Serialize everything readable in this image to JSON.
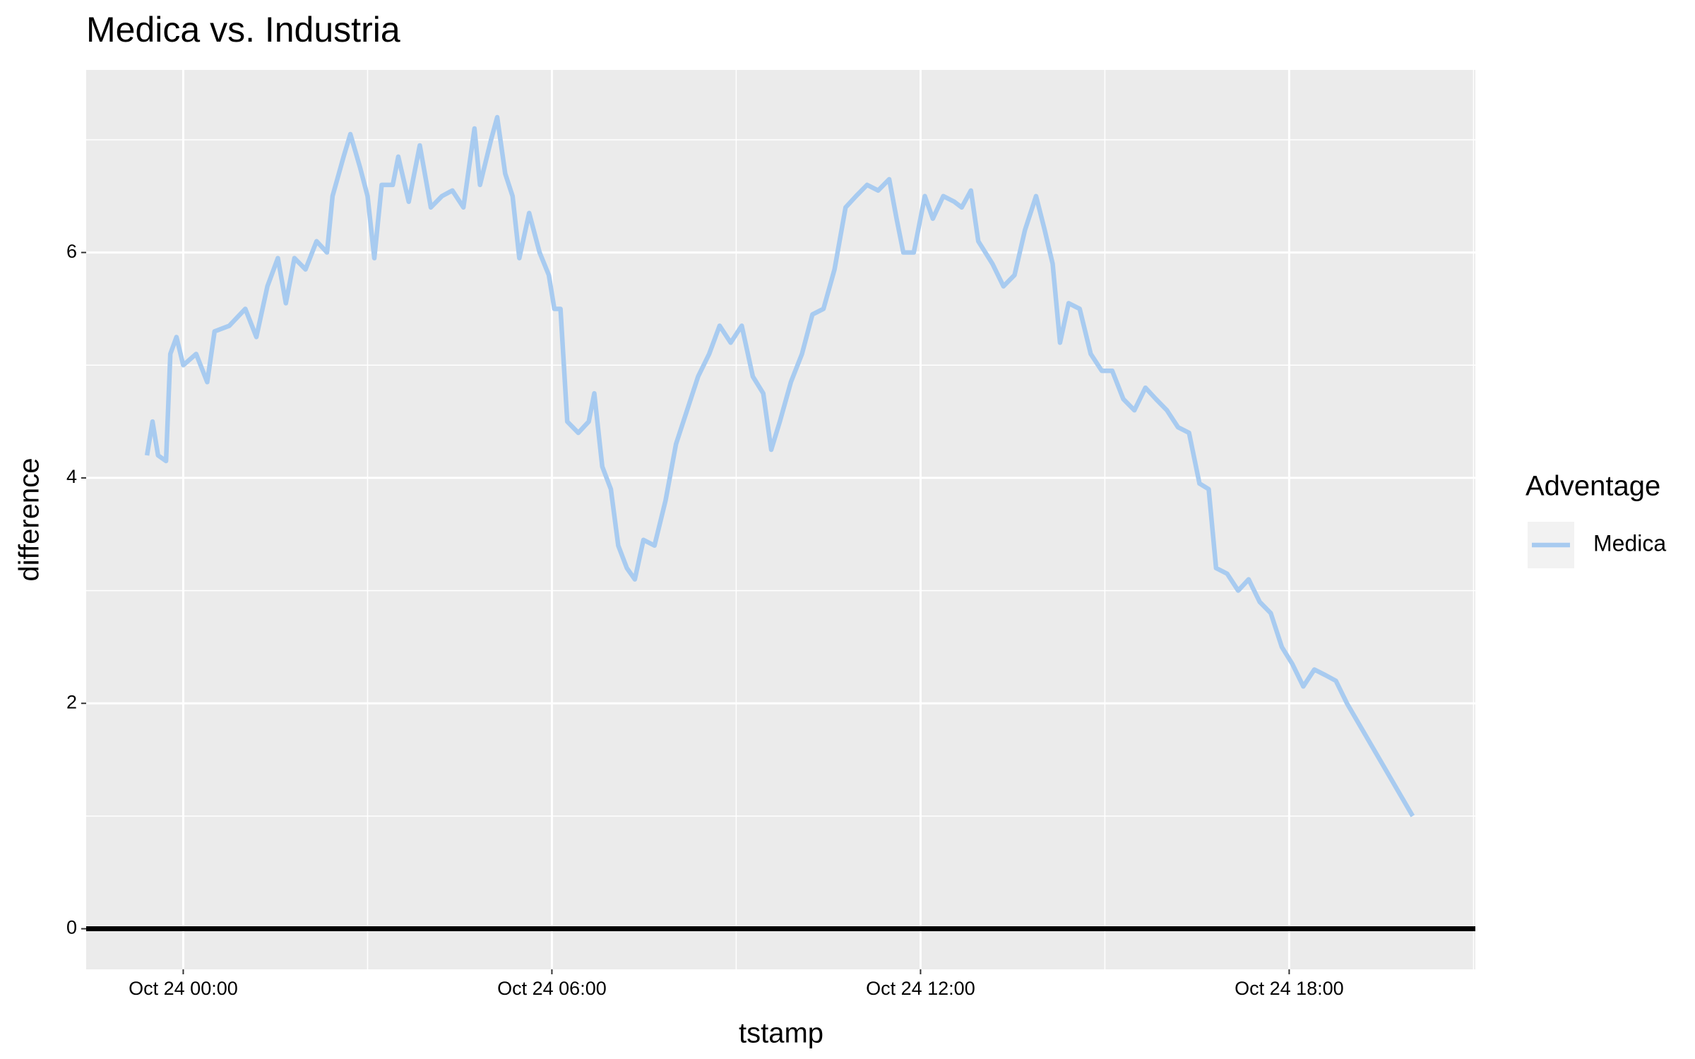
{
  "chart_data": {
    "type": "line",
    "title": "Medica vs. Industria",
    "x_label": "tstamp",
    "y_label": "difference",
    "legend_title": "Adventage",
    "x": [
      -0.59,
      -0.5,
      -0.41,
      -0.28,
      -0.21,
      -0.11,
      0,
      0.21,
      0.39,
      0.51,
      0.75,
      1.01,
      1.19,
      1.37,
      1.54,
      1.67,
      1.81,
      1.99,
      2.17,
      2.34,
      2.43,
      2.61,
      2.72,
      2.88,
      3.0,
      3.11,
      3.23,
      3.41,
      3.5,
      3.67,
      3.85,
      4.03,
      4.21,
      4.38,
      4.56,
      4.74,
      4.83,
      5.01,
      5.11,
      5.24,
      5.36,
      5.47,
      5.63,
      5.8,
      5.95,
      6.04,
      6.14,
      6.25,
      6.43,
      6.6,
      6.69,
      6.82,
      6.96,
      7.08,
      7.22,
      7.35,
      7.49,
      7.67,
      7.85,
      8.02,
      8.2,
      8.38,
      8.56,
      8.73,
      8.91,
      9.09,
      9.27,
      9.44,
      9.57,
      9.71,
      9.89,
      10.07,
      10.24,
      10.42,
      10.6,
      10.78,
      10.95,
      11.13,
      11.31,
      11.49,
      11.61,
      11.72,
      11.89,
      12.07,
      12.2,
      12.37,
      12.55,
      12.67,
      12.82,
      12.94,
      13.17,
      13.35,
      13.53,
      13.7,
      13.88,
      14.02,
      14.15,
      14.27,
      14.41,
      14.59,
      14.77,
      14.95,
      15.12,
      15.3,
      15.48,
      15.66,
      15.83,
      16.01,
      16.19,
      16.37,
      16.54,
      16.69,
      16.81,
      16.99,
      17.17,
      17.34,
      17.52,
      17.7,
      17.88,
      18.05,
      18.23,
      18.41,
      18.59,
      18.76,
      18.94,
      20.01
    ],
    "series": [
      {
        "name": "Medica",
        "color": "#a8cbf0",
        "values": [
          4.2,
          4.5,
          4.2,
          4.15,
          5.1,
          5.25,
          5.0,
          5.1,
          4.85,
          5.3,
          5.35,
          5.5,
          5.25,
          5.7,
          5.95,
          5.55,
          5.95,
          5.85,
          6.1,
          6.0,
          6.5,
          6.85,
          7.05,
          6.75,
          6.5,
          5.95,
          6.6,
          6.6,
          6.85,
          6.45,
          6.95,
          6.4,
          6.5,
          6.55,
          6.4,
          7.1,
          6.6,
          7.0,
          7.2,
          6.7,
          6.5,
          5.95,
          6.35,
          6.0,
          5.8,
          5.5,
          5.5,
          4.5,
          4.4,
          4.5,
          4.75,
          4.1,
          3.9,
          3.4,
          3.2,
          3.1,
          3.45,
          3.4,
          3.8,
          4.3,
          4.6,
          4.9,
          5.1,
          5.35,
          5.2,
          5.35,
          4.9,
          4.75,
          4.25,
          4.5,
          4.85,
          5.1,
          5.45,
          5.5,
          5.85,
          6.4,
          6.5,
          6.6,
          6.55,
          6.65,
          6.3,
          6.0,
          6.0,
          6.5,
          6.3,
          6.5,
          6.45,
          6.4,
          6.55,
          6.1,
          5.9,
          5.7,
          5.8,
          6.2,
          6.5,
          6.2,
          5.9,
          5.2,
          5.55,
          5.5,
          5.1,
          4.95,
          4.95,
          4.7,
          4.6,
          4.8,
          4.7,
          4.6,
          4.45,
          4.4,
          3.95,
          3.9,
          3.2,
          3.15,
          3.0,
          3.1,
          2.9,
          2.8,
          2.5,
          2.35,
          2.15,
          2.3,
          2.25,
          2.2,
          2.0,
          1.0
        ]
      }
    ],
    "xlim": [
      -1.58,
      21.03
    ],
    "ylim": [
      -0.36,
      7.62
    ],
    "xticks": [
      {
        "value": 0,
        "label": "Oct 24 00:00"
      },
      {
        "value": 6,
        "label": "Oct 24 06:00"
      },
      {
        "value": 12,
        "label": "Oct 24 12:00"
      },
      {
        "value": 18,
        "label": "Oct 24 18:00"
      }
    ],
    "xminor": [
      3,
      9,
      15,
      21
    ],
    "yticks": [
      0,
      2,
      4,
      6
    ],
    "yminor": [
      1,
      3,
      5,
      7
    ],
    "hline": 0,
    "hline_color": "#000000",
    "grid": true
  }
}
